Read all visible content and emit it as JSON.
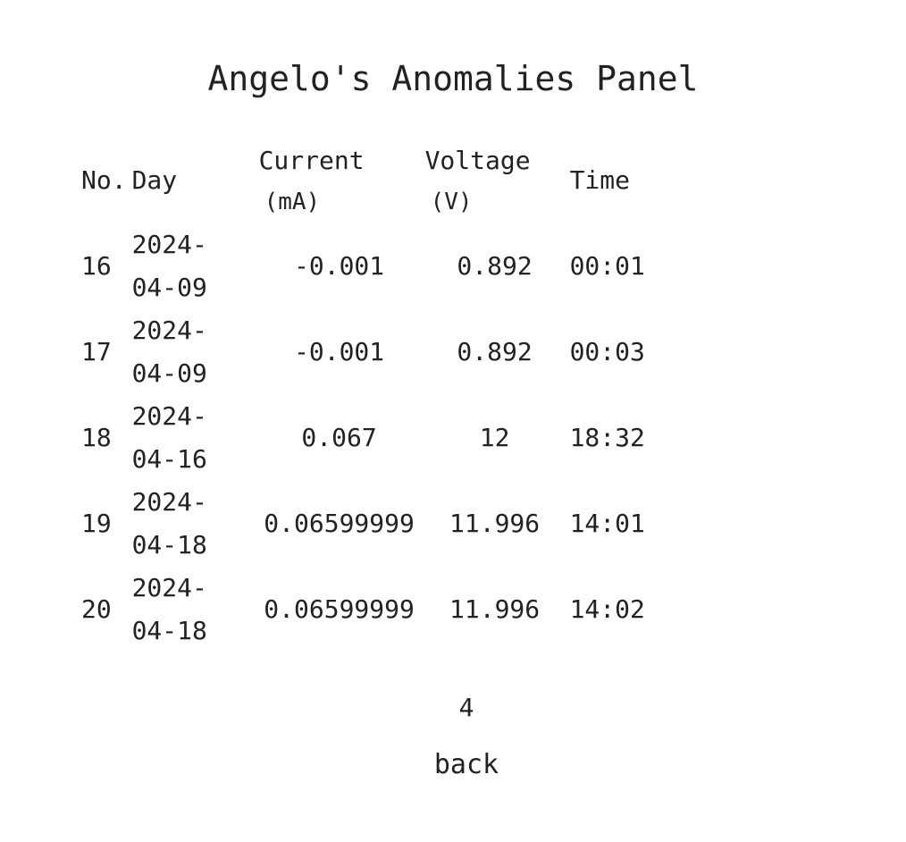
{
  "page": {
    "title": "Angelo's Anomalies Panel"
  },
  "table": {
    "headers": {
      "no": "No.",
      "day": "Day",
      "current": "Current",
      "current_unit": "(mA)",
      "voltage": "Voltage",
      "voltage_unit": "(V)",
      "time": "Time"
    },
    "rows": [
      {
        "no": "16",
        "day_part1": "2024-",
        "day_part2": "04-09",
        "current": "-0.001",
        "voltage": "0.892",
        "time": "00:01"
      },
      {
        "no": "17",
        "day_part1": "2024-",
        "day_part2": "04-09",
        "current": "-0.001",
        "voltage": "0.892",
        "time": "00:03"
      },
      {
        "no": "18",
        "day_part1": "2024-",
        "day_part2": "04-16",
        "current": "0.067",
        "voltage": "12",
        "time": "18:32"
      },
      {
        "no": "19",
        "day_part1": "2024-",
        "day_part2": "04-18",
        "current": "0.06599999",
        "voltage": "11.996",
        "time": "14:01"
      },
      {
        "no": "20",
        "day_part1": "2024-",
        "day_part2": "04-18",
        "current": "0.06599999",
        "voltage": "11.996",
        "time": "14:02"
      }
    ]
  },
  "pagination": {
    "current_page": "4"
  },
  "nav": {
    "back_label": "back"
  }
}
